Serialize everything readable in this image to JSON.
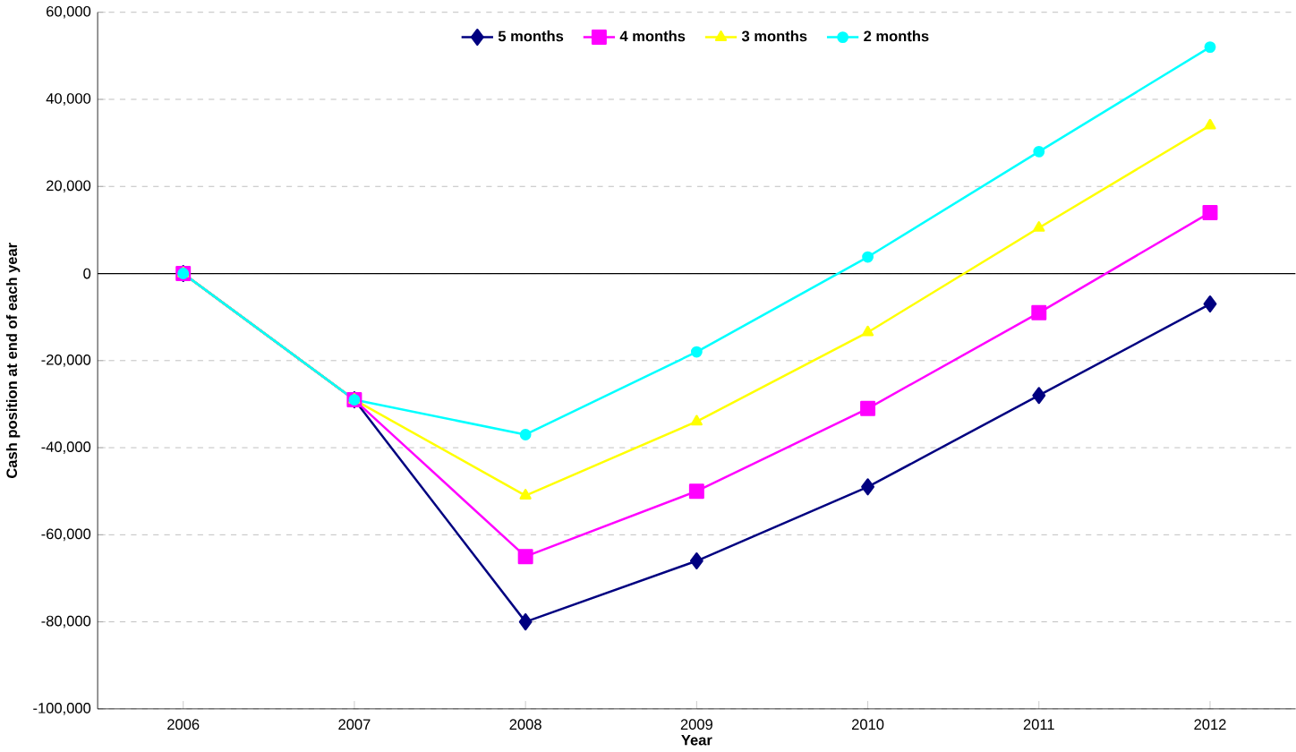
{
  "chart_data": {
    "type": "line",
    "xlabel": "Year",
    "ylabel": "Cash position at end of each year",
    "categories": [
      "2006",
      "2007",
      "2008",
      "2009",
      "2010",
      "2011",
      "2012"
    ],
    "series": [
      {
        "name": "5 months",
        "color": "#000080",
        "marker": "diamond",
        "values": [
          0,
          -29000,
          -80000,
          -66000,
          -49000,
          -28000,
          -7000
        ]
      },
      {
        "name": "4 months",
        "color": "#ff00ff",
        "marker": "square",
        "values": [
          0,
          -29000,
          -65000,
          -50000,
          -31000,
          -9000,
          14000
        ]
      },
      {
        "name": "3 months",
        "color": "#ffff00",
        "marker": "triangle",
        "values": [
          0,
          -29000,
          -51000,
          -34000,
          -13500,
          10500,
          34000
        ]
      },
      {
        "name": "2 months",
        "color": "#00ffff",
        "marker": "circle",
        "values": [
          0,
          -29000,
          -37000,
          -18000,
          3800,
          28000,
          52000
        ]
      }
    ],
    "ylim": [
      -100000,
      60000
    ],
    "yticks": [
      {
        "value": -100000,
        "label": "-100,000"
      },
      {
        "value": -80000,
        "label": "-80,000"
      },
      {
        "value": -60000,
        "label": "-60,000"
      },
      {
        "value": -40000,
        "label": "-40,000"
      },
      {
        "value": -20000,
        "label": "-20,000"
      },
      {
        "value": 0,
        "label": "0"
      },
      {
        "value": 20000,
        "label": "20,000"
      },
      {
        "value": 40000,
        "label": "40,000"
      },
      {
        "value": 60000,
        "label": "60,000"
      }
    ],
    "grid": "y",
    "legend": "top",
    "line_style": "solid"
  }
}
